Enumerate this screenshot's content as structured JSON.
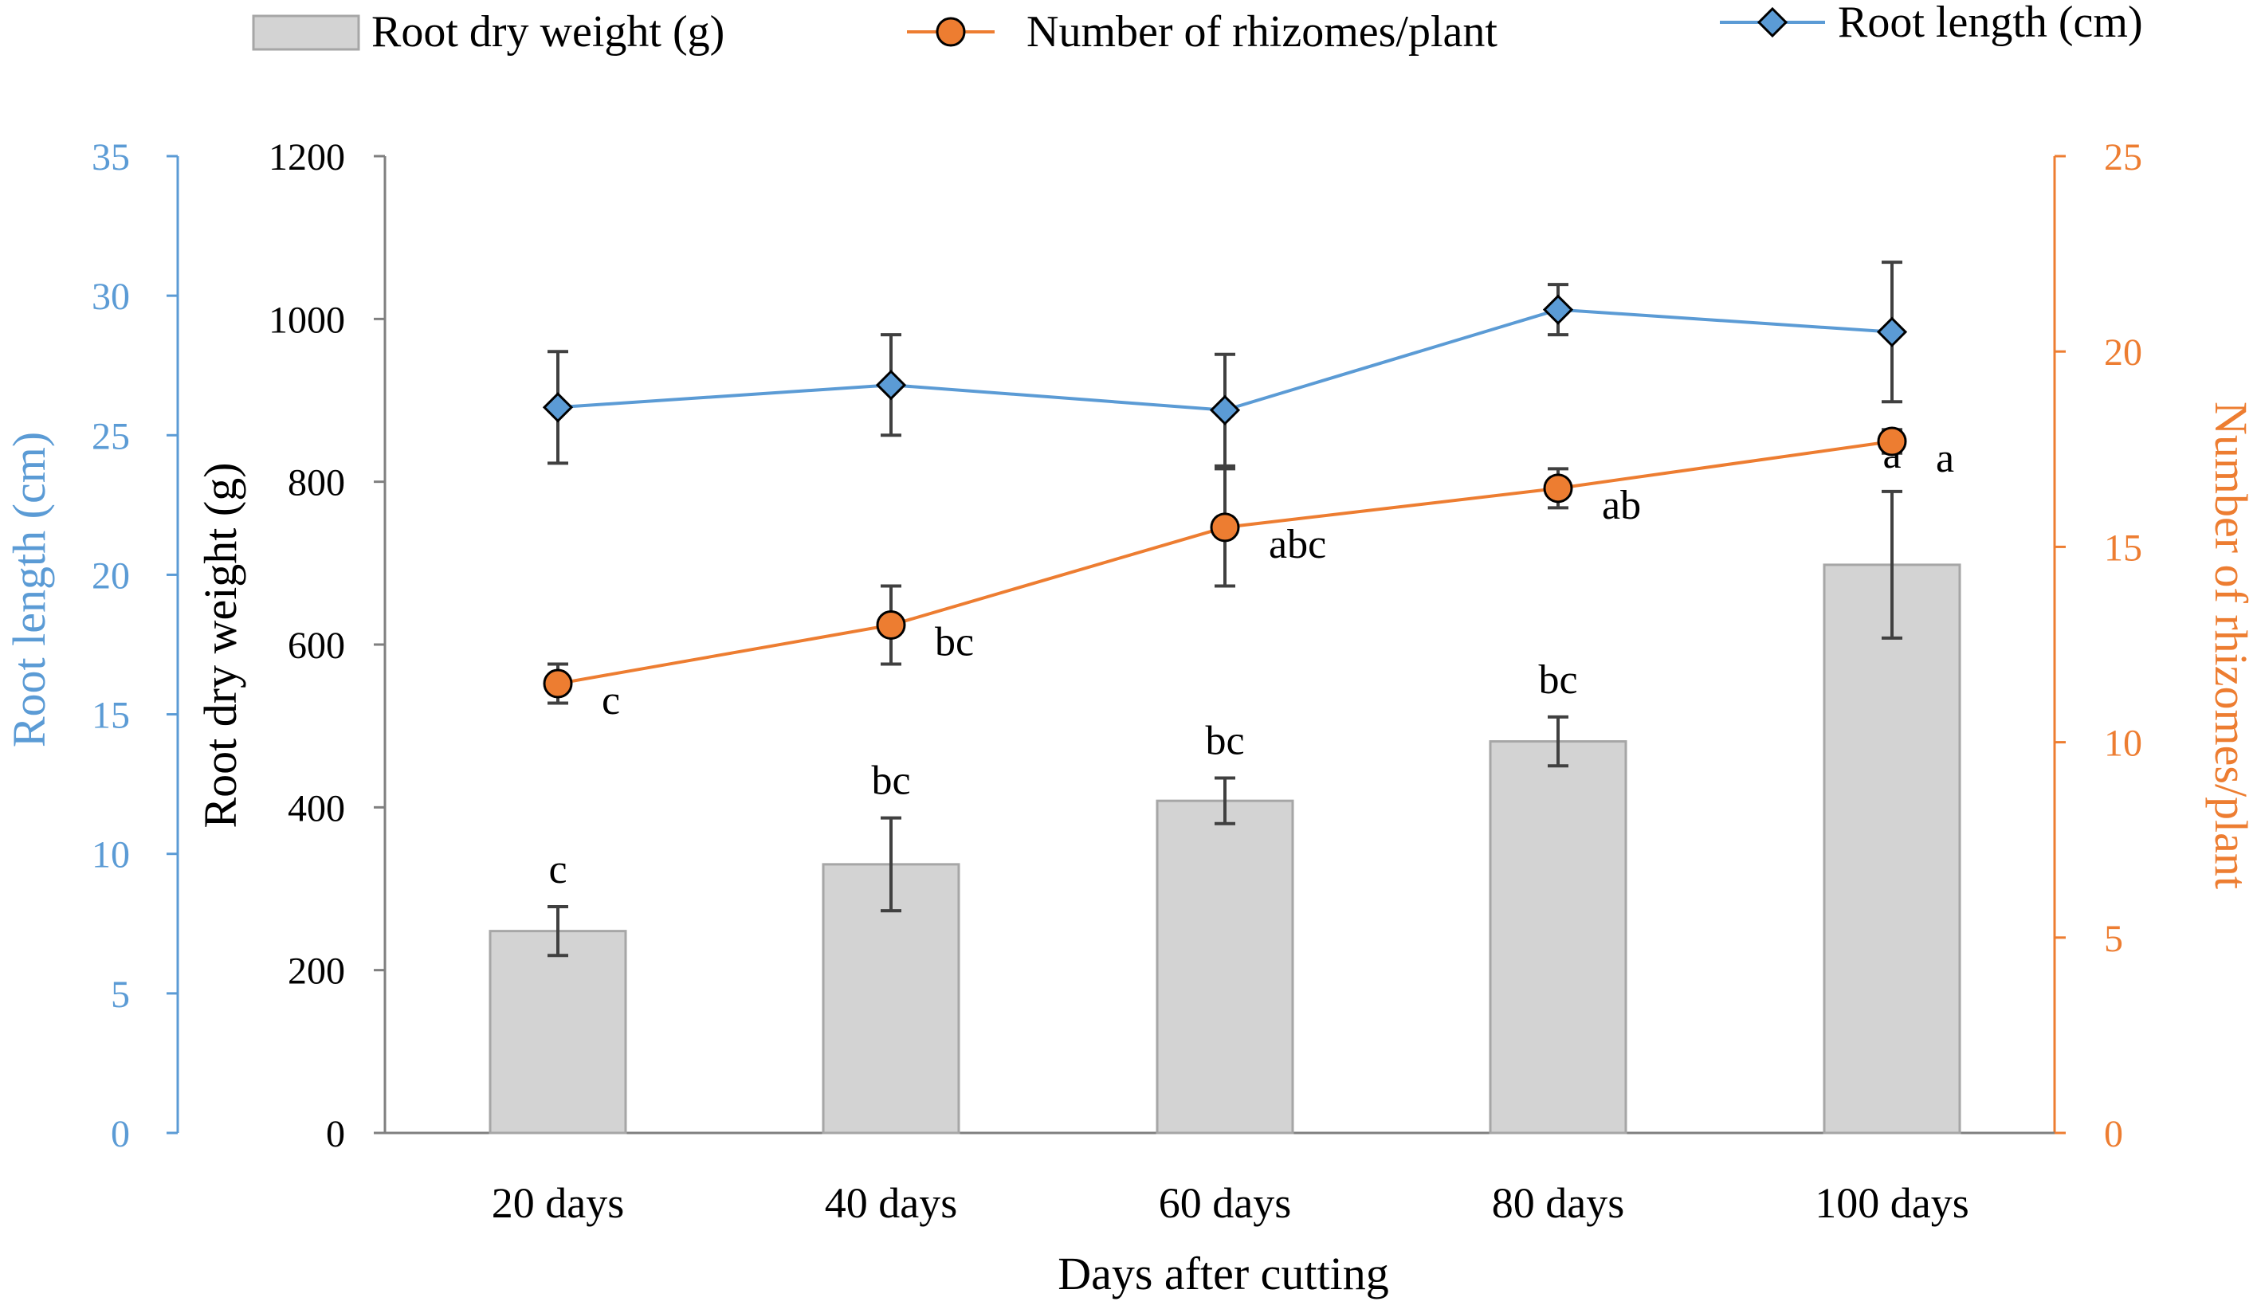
{
  "chart_data": {
    "type": "bar",
    "title": "",
    "categories": [
      "20 days",
      "40 days",
      "60 days",
      "80 days",
      "100 days"
    ],
    "xlabel": "Days after cutting",
    "axes": {
      "left_outer": {
        "label": "Root length (cm)",
        "range": [
          0,
          35
        ],
        "ticks": [
          "0",
          "5",
          "10",
          "15",
          "20",
          "25",
          "30",
          "35"
        ],
        "color": "#5b9bd5"
      },
      "left_inner": {
        "label": "Root dry weight (g)",
        "range": [
          0,
          1200
        ],
        "ticks": [
          "0",
          "200",
          "400",
          "600",
          "800",
          "1000",
          "1200"
        ],
        "color": "#000000"
      },
      "right": {
        "label": "Number of rhizomes/plant",
        "range": [
          0,
          25
        ],
        "ticks": [
          "0",
          "5",
          "10",
          "15",
          "20",
          "25"
        ],
        "color": "#ed7d31"
      }
    },
    "series": [
      {
        "name": "Root dry weight (g)",
        "type": "bar",
        "axis": "left_inner",
        "values": [
          248,
          330,
          408,
          481,
          698
        ],
        "errors": [
          30,
          57,
          28,
          30,
          90
        ],
        "labels": [
          "c",
          "bc",
          "bc",
          "bc",
          "a"
        ],
        "color": "#d3d3d3"
      },
      {
        "name": "Number of rhizomes/plant",
        "type": "line",
        "axis": "right",
        "values": [
          11.5,
          13.0,
          15.5,
          16.5,
          17.7
        ],
        "errors": [
          0.5,
          1.0,
          1.5,
          0.5,
          0.3
        ],
        "labels": [
          "c",
          "bc",
          "abc",
          "ab",
          "a"
        ],
        "color": "#ed7d31"
      },
      {
        "name": "Root length (cm)",
        "type": "line",
        "axis": "left_outer",
        "values": [
          26.0,
          26.8,
          25.9,
          29.5,
          28.7
        ],
        "errors": [
          2.0,
          1.8,
          2.0,
          0.9,
          2.5
        ],
        "color": "#5b9bd5"
      }
    ],
    "legend": [
      "Root dry weight (g)",
      "Number of rhizomes/plant",
      "Root length (cm)"
    ],
    "legend_position": "top",
    "grid": false
  }
}
